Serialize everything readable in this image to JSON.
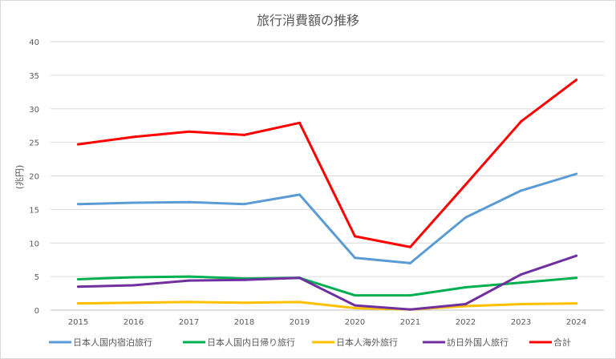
{
  "chart_data": {
    "type": "line",
    "title": "旅行消費額の推移",
    "xlabel": "",
    "ylabel": "(兆円)",
    "x": [
      "2015",
      "2016",
      "2017",
      "2018",
      "2019",
      "2020",
      "2021",
      "2022",
      "2023",
      "2024"
    ],
    "ylim": [
      0,
      40
    ],
    "yticks": [
      "0",
      "5",
      "10",
      "15",
      "20",
      "25",
      "30",
      "35",
      "40"
    ],
    "grid": true,
    "legend_position": "bottom",
    "series": [
      {
        "name": "日本人国内宿泊旅行",
        "color": "#5b9bd5",
        "values": [
          15.8,
          16.0,
          16.1,
          15.8,
          17.2,
          7.8,
          7.0,
          13.8,
          17.8,
          20.3
        ]
      },
      {
        "name": "日本人国内日帰り旅行",
        "color": "#00b050",
        "values": [
          4.6,
          4.9,
          5.0,
          4.7,
          4.8,
          2.2,
          2.2,
          3.4,
          4.1,
          4.8
        ]
      },
      {
        "name": "日本人海外旅行",
        "color": "#ffc000",
        "values": [
          1.0,
          1.1,
          1.2,
          1.1,
          1.2,
          0.3,
          0.1,
          0.6,
          0.9,
          1.0
        ]
      },
      {
        "name": "訪日外国人旅行",
        "color": "#7030a0",
        "values": [
          3.5,
          3.7,
          4.4,
          4.5,
          4.8,
          0.7,
          0.1,
          0.9,
          5.3,
          8.1
        ]
      },
      {
        "name": "合計",
        "color": "#ff0000",
        "values": [
          24.7,
          25.8,
          26.6,
          26.1,
          27.9,
          11.0,
          9.4,
          18.7,
          28.1,
          34.3
        ]
      }
    ]
  }
}
